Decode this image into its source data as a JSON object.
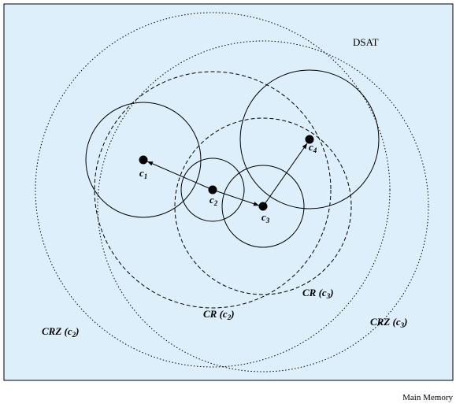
{
  "container": {
    "label": "DSAT"
  },
  "footer": {
    "label": "Main Memory"
  },
  "nodes": [
    {
      "label": "c",
      "sub": "1"
    },
    {
      "label": "c",
      "sub": "2"
    },
    {
      "label": "c",
      "sub": "3"
    },
    {
      "label": "c",
      "sub": "4"
    }
  ],
  "regions": [
    {
      "prefix": "CR (c",
      "sub": "2",
      "suffix": ")"
    },
    {
      "prefix": "CR (c",
      "sub": "3",
      "suffix": ")"
    },
    {
      "prefix": "CRZ (c",
      "sub": "2",
      "suffix": ")"
    },
    {
      "prefix": "CRZ (c",
      "sub": "3",
      "suffix": ")"
    }
  ]
}
